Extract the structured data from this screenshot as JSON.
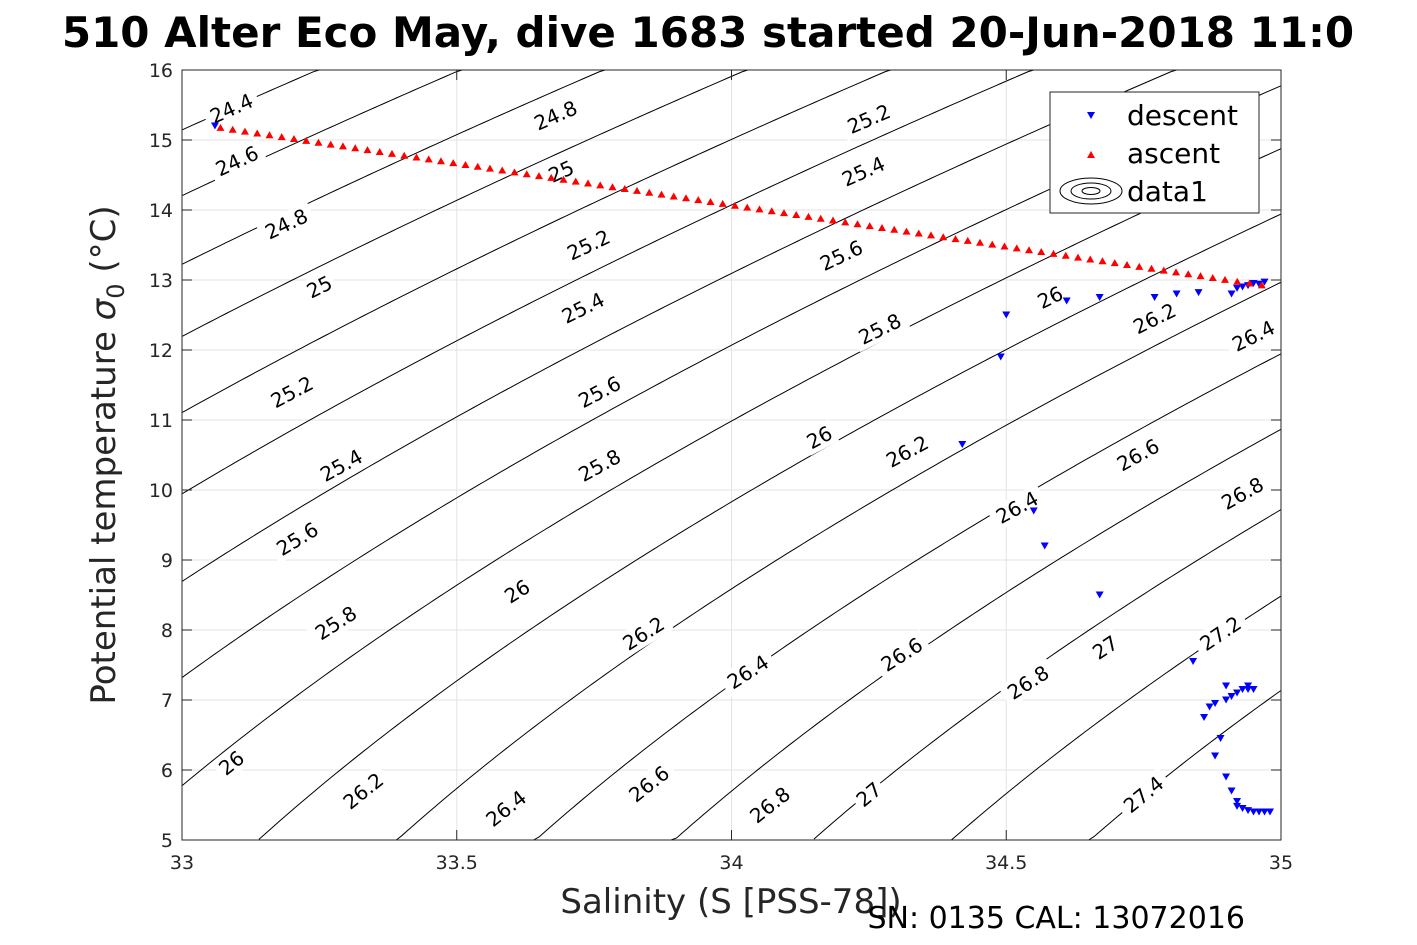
{
  "chart_data": {
    "type": "scatter",
    "title": "510 Alter Eco May, dive 1683 started 20-Jun-2018 11:0",
    "xlabel": "Salinity (S [PSS-78])",
    "ylabel_text": "Potential temperature ",
    "ylabel_sigma": "σ",
    "ylabel_sub": "0",
    "ylabel_unit": " (°C)",
    "xlim": [
      33,
      35
    ],
    "ylim": [
      5,
      16
    ],
    "x_ticks": [
      33,
      33.5,
      34,
      34.5,
      35
    ],
    "x_tick_labels": [
      "33",
      "33.5",
      "34",
      "34.5",
      "35"
    ],
    "y_ticks": [
      5,
      6,
      7,
      8,
      9,
      10,
      11,
      12,
      13,
      14,
      15,
      16
    ],
    "y_tick_labels": [
      "5",
      "6",
      "7",
      "8",
      "9",
      "10",
      "11",
      "12",
      "13",
      "14",
      "15",
      "16"
    ],
    "grid": true,
    "legend_position": "top-right",
    "footer": "SN: 0135  CAL: 13072016",
    "contour_levels": [
      24.4,
      24.6,
      24.8,
      25,
      25.2,
      25.4,
      25.6,
      25.8,
      26,
      26.2,
      26.4,
      26.6,
      26.8,
      27,
      27.2,
      27.4
    ],
    "contour_labels": [
      {
        "text": "24.4",
        "s": 33.09,
        "t": 15.45
      },
      {
        "text": "24.6",
        "s": 33.1,
        "t": 14.7
      },
      {
        "text": "24.8",
        "s": 33.19,
        "t": 13.8
      },
      {
        "text": "25",
        "s": 33.25,
        "t": 12.9
      },
      {
        "text": "25.2",
        "s": 33.2,
        "t": 11.4
      },
      {
        "text": "25.4",
        "s": 33.29,
        "t": 10.35
      },
      {
        "text": "25.6",
        "s": 33.21,
        "t": 9.3
      },
      {
        "text": "25.8",
        "s": 33.28,
        "t": 8.1
      },
      {
        "text": "26",
        "s": 33.09,
        "t": 6.1
      },
      {
        "text": "26.2",
        "s": 33.33,
        "t": 5.7
      },
      {
        "text": "26.4",
        "s": 33.59,
        "t": 5.45
      },
      {
        "text": "26.6",
        "s": 33.85,
        "t": 5.8
      },
      {
        "text": "26.8",
        "s": 34.07,
        "t": 5.5
      },
      {
        "text": "27",
        "s": 34.25,
        "t": 5.65
      },
      {
        "text": "27.4",
        "s": 34.75,
        "t": 5.65
      },
      {
        "text": "24.8",
        "s": 33.68,
        "t": 15.35
      },
      {
        "text": "25",
        "s": 33.69,
        "t": 14.55
      },
      {
        "text": "25.2",
        "s": 33.74,
        "t": 13.5
      },
      {
        "text": "25.4",
        "s": 33.73,
        "t": 12.6
      },
      {
        "text": "25.6",
        "s": 33.76,
        "t": 11.4
      },
      {
        "text": "25.8",
        "s": 33.76,
        "t": 10.35
      },
      {
        "text": "26",
        "s": 33.61,
        "t": 8.55
      },
      {
        "text": "26.2",
        "s": 33.84,
        "t": 7.95
      },
      {
        "text": "26.4",
        "s": 34.03,
        "t": 7.4
      },
      {
        "text": "26.6",
        "s": 34.31,
        "t": 7.65
      },
      {
        "text": "26.8",
        "s": 34.54,
        "t": 7.25
      },
      {
        "text": "27",
        "s": 34.68,
        "t": 7.75
      },
      {
        "text": "27.2",
        "s": 34.89,
        "t": 7.95
      },
      {
        "text": "25.2",
        "s": 34.25,
        "t": 15.3
      },
      {
        "text": "25.4",
        "s": 34.24,
        "t": 14.55
      },
      {
        "text": "25.6",
        "s": 34.2,
        "t": 13.35
      },
      {
        "text": "25.8",
        "s": 34.27,
        "t": 12.3
      },
      {
        "text": "26",
        "s": 34.16,
        "t": 10.75
      },
      {
        "text": "26.2",
        "s": 34.32,
        "t": 10.55
      },
      {
        "text": "26.4",
        "s": 34.52,
        "t": 9.75
      },
      {
        "text": "26.6",
        "s": 34.74,
        "t": 10.5
      },
      {
        "text": "26.8",
        "s": 34.93,
        "t": 9.95
      },
      {
        "text": "25.6",
        "s": 34.72,
        "t": 14.9
      },
      {
        "text": "26",
        "s": 34.58,
        "t": 12.75
      },
      {
        "text": "26.2",
        "s": 34.77,
        "t": 12.45
      },
      {
        "text": "26.4",
        "s": 34.95,
        "t": 12.2
      }
    ],
    "series": [
      {
        "name": "descent",
        "marker": "triangle-down",
        "color": "#0000ff",
        "points": [
          [
            33.06,
            15.2
          ],
          [
            34.42,
            10.65
          ],
          [
            34.49,
            11.9
          ],
          [
            34.5,
            12.5
          ],
          [
            34.55,
            9.7
          ],
          [
            34.57,
            9.2
          ],
          [
            34.61,
            12.7
          ],
          [
            34.67,
            12.75
          ],
          [
            34.67,
            8.5
          ],
          [
            34.77,
            12.75
          ],
          [
            34.81,
            12.8
          ],
          [
            34.85,
            12.82
          ],
          [
            34.91,
            12.8
          ],
          [
            34.92,
            12.88
          ],
          [
            34.93,
            12.9
          ],
          [
            34.94,
            12.92
          ],
          [
            34.95,
            12.95
          ],
          [
            34.96,
            12.94
          ],
          [
            34.97,
            12.97
          ],
          [
            34.84,
            7.55
          ],
          [
            34.86,
            6.75
          ],
          [
            34.87,
            6.9
          ],
          [
            34.88,
            6.2
          ],
          [
            34.89,
            6.45
          ],
          [
            34.88,
            6.95
          ],
          [
            34.9,
            7.0
          ],
          [
            34.91,
            7.05
          ],
          [
            34.9,
            7.2
          ],
          [
            34.92,
            7.1
          ],
          [
            34.93,
            7.15
          ],
          [
            34.94,
            7.15
          ],
          [
            34.95,
            7.15
          ],
          [
            34.94,
            7.2
          ],
          [
            34.9,
            5.9
          ],
          [
            34.91,
            5.7
          ],
          [
            34.92,
            5.55
          ],
          [
            34.92,
            5.48
          ],
          [
            34.93,
            5.45
          ],
          [
            34.94,
            5.42
          ],
          [
            34.95,
            5.4
          ],
          [
            34.96,
            5.4
          ],
          [
            34.97,
            5.4
          ],
          [
            34.98,
            5.4
          ]
        ]
      },
      {
        "name": "ascent",
        "marker": "triangle-up",
        "color": "#ff0000",
        "start": [
          33.07,
          15.18
        ],
        "end": [
          34.965,
          12.93
        ],
        "count": 86
      },
      {
        "name": "data1",
        "marker": "contour",
        "color": "#000000"
      }
    ]
  }
}
